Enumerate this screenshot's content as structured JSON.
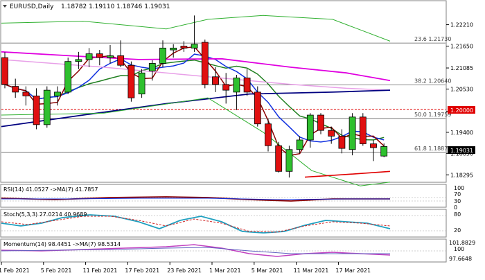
{
  "chart_data": {
    "type": "candlestick",
    "symbol": "EURUSD,Daily",
    "ohlc_header": "1.18782 1.19110 1.18746 1.19031",
    "current_price": "1.19031",
    "marked_level": "1.20000",
    "x_ticks": [
      "1 Feb 2021",
      "5 Feb 2021",
      "11 Feb 2021",
      "17 Feb 2021",
      "23 Feb 2021",
      "1 Mar 2021",
      "5 Mar 2021",
      "11 Mar 2021",
      "17 Mar 2021"
    ],
    "y_ticks": [
      1.2221,
      1.2165,
      1.2108,
      1.2053,
      1.1995,
      1.194,
      1.1885,
      1.1829
    ],
    "y_tick_labels": [
      "1.22210",
      "1.21650",
      "1.21085",
      "1.20530",
      "",
      "1.19400",
      "1.18850",
      "1.18295"
    ],
    "ylim": [
      1.1815,
      1.228
    ],
    "fib_levels": [
      {
        "label": "23.6 1.21730",
        "value": 1.2173
      },
      {
        "label": "38.2 1.20640",
        "value": 1.2064
      },
      {
        "label": "50.0 1.19759",
        "value": 1.19759
      },
      {
        "label": "61.8 1.18877",
        "value": 1.18877
      }
    ],
    "candles": [
      {
        "o": 1.2135,
        "h": 1.2149,
        "l": 1.2055,
        "c": 1.2065
      },
      {
        "o": 1.206,
        "h": 1.208,
        "l": 1.203,
        "c": 1.2045
      },
      {
        "o": 1.2045,
        "h": 1.206,
        "l": 1.201,
        "c": 1.2035
      },
      {
        "o": 1.2035,
        "h": 1.2055,
        "l": 1.1948,
        "c": 1.196
      },
      {
        "o": 1.196,
        "h": 1.206,
        "l": 1.1952,
        "c": 1.205
      },
      {
        "o": 1.2035,
        "h": 1.206,
        "l": 1.201,
        "c": 1.2045
      },
      {
        "o": 1.2045,
        "h": 1.2135,
        "l": 1.204,
        "c": 1.2125
      },
      {
        "o": 1.2125,
        "h": 1.215,
        "l": 1.2105,
        "c": 1.213
      },
      {
        "o": 1.213,
        "h": 1.216,
        "l": 1.211,
        "c": 1.2145
      },
      {
        "o": 1.2145,
        "h": 1.2155,
        "l": 1.2115,
        "c": 1.2135
      },
      {
        "o": 1.2135,
        "h": 1.2168,
        "l": 1.212,
        "c": 1.214
      },
      {
        "o": 1.214,
        "h": 1.218,
        "l": 1.211,
        "c": 1.2115
      },
      {
        "o": 1.2115,
        "h": 1.2125,
        "l": 1.202,
        "c": 1.203
      },
      {
        "o": 1.204,
        "h": 1.2105,
        "l": 1.203,
        "c": 1.2095
      },
      {
        "o": 1.21,
        "h": 1.2128,
        "l": 1.2075,
        "c": 1.212
      },
      {
        "o": 1.212,
        "h": 1.218,
        "l": 1.211,
        "c": 1.216
      },
      {
        "o": 1.2155,
        "h": 1.217,
        "l": 1.2135,
        "c": 1.216
      },
      {
        "o": 1.2165,
        "h": 1.2178,
        "l": 1.215,
        "c": 1.216
      },
      {
        "o": 1.216,
        "h": 1.2245,
        "l": 1.215,
        "c": 1.217
      },
      {
        "o": 1.2175,
        "h": 1.2182,
        "l": 1.2055,
        "c": 1.2065
      },
      {
        "o": 1.2085,
        "h": 1.211,
        "l": 1.2045,
        "c": 1.2065
      },
      {
        "o": 1.2065,
        "h": 1.2095,
        "l": 1.2015,
        "c": 1.205
      },
      {
        "o": 1.2045,
        "h": 1.209,
        "l": 1.1998,
        "c": 1.2082
      },
      {
        "o": 1.2082,
        "h": 1.2105,
        "l": 1.2035,
        "c": 1.2045
      },
      {
        "o": 1.2045,
        "h": 1.206,
        "l": 1.1955,
        "c": 1.1962
      },
      {
        "o": 1.1962,
        "h": 1.1975,
        "l": 1.189,
        "c": 1.1905
      },
      {
        "o": 1.1905,
        "h": 1.1915,
        "l": 1.1835,
        "c": 1.1838
      },
      {
        "o": 1.1838,
        "h": 1.1905,
        "l": 1.1822,
        "c": 1.1895
      },
      {
        "o": 1.1895,
        "h": 1.193,
        "l": 1.1885,
        "c": 1.192
      },
      {
        "o": 1.192,
        "h": 1.199,
        "l": 1.19,
        "c": 1.1985
      },
      {
        "o": 1.1985,
        "h": 1.199,
        "l": 1.1935,
        "c": 1.1945
      },
      {
        "o": 1.1945,
        "h": 1.1955,
        "l": 1.191,
        "c": 1.193
      },
      {
        "o": 1.193,
        "h": 1.1948,
        "l": 1.1885,
        "c": 1.1898
      },
      {
        "o": 1.1895,
        "h": 1.199,
        "l": 1.188,
        "c": 1.198
      },
      {
        "o": 1.198,
        "h": 1.199,
        "l": 1.1905,
        "c": 1.191
      },
      {
        "o": 1.191,
        "h": 1.192,
        "l": 1.1865,
        "c": 1.19
      },
      {
        "o": 1.1878,
        "h": 1.1911,
        "l": 1.1875,
        "c": 1.1903
      }
    ],
    "panels": [
      {
        "name": "RSI",
        "label": "RSI(14) 41.0527  ->MA(7) 41.7857",
        "scale": [
          "100",
          "70",
          "30",
          "0"
        ]
      },
      {
        "name": "Stochastic",
        "label": "Stoch(5,3,3) 27.0214 40.9689",
        "scale": [
          "80",
          "20"
        ]
      },
      {
        "name": "Momentum",
        "label": "Momentum(14) 98.4451  ->MA(7) 98.5314",
        "scale": [
          "101.8829",
          "100",
          "97.6648"
        ]
      }
    ],
    "colors": {
      "bull": "#2ec02e",
      "bear": "#e01010",
      "pink_ma": "#e000e0",
      "level": "#e00000"
    }
  }
}
